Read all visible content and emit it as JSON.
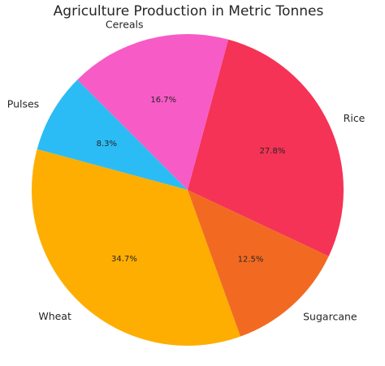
{
  "chart_data": {
    "type": "pie",
    "title": "Agriculture Production in Metric Tonnes",
    "start_angle_deg": 135,
    "direction": "counterclockwise",
    "slices": [
      {
        "label": "Pulses",
        "value": 8.3,
        "pct_label": "8.3%",
        "color": "#2bbcf5"
      },
      {
        "label": "Wheat",
        "value": 34.7,
        "pct_label": "34.7%",
        "color": "#fdae00"
      },
      {
        "label": "Sugarcane",
        "value": 12.5,
        "pct_label": "12.5%",
        "color": "#f26a22"
      },
      {
        "label": "Rice",
        "value": 27.8,
        "pct_label": "27.8%",
        "color": "#f43356"
      },
      {
        "label": "Cereals",
        "value": 16.7,
        "pct_label": "16.7%",
        "color": "#f75bc6"
      }
    ]
  }
}
